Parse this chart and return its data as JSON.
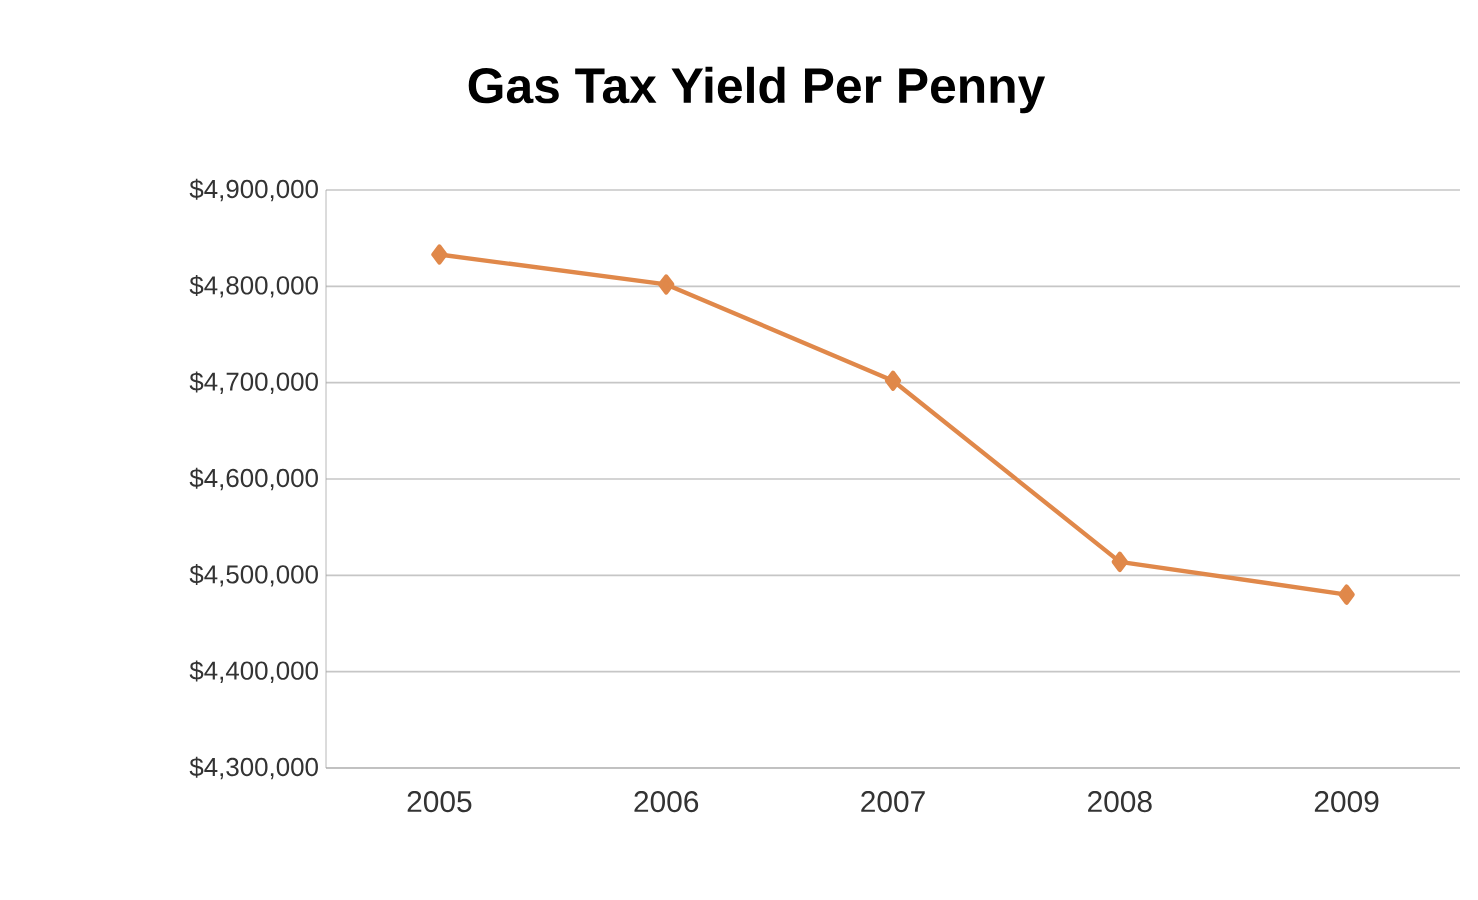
{
  "chart_data": {
    "type": "line",
    "title": "Gas Tax Yield Per Penny",
    "categories": [
      "2005",
      "2006",
      "2007",
      "2008",
      "2009"
    ],
    "series": [
      {
        "color": "#e0884a",
        "values": [
          4833000,
          4802000,
          4702000,
          4514000,
          4480000
        ]
      }
    ],
    "ylim": [
      4300000,
      4900000
    ],
    "yticks": [
      {
        "value": 4300000,
        "label": "$4,300,000"
      },
      {
        "value": 4400000,
        "label": "$4,400,000"
      },
      {
        "value": 4500000,
        "label": "$4,500,000"
      },
      {
        "value": 4600000,
        "label": "$4,600,000"
      },
      {
        "value": 4700000,
        "label": "$4,700,000"
      },
      {
        "value": 4800000,
        "label": "$4,800,000"
      },
      {
        "value": 4900000,
        "label": "$4,900,000"
      }
    ],
    "grid": "y",
    "marker": "diamond",
    "line_style": "solid"
  }
}
